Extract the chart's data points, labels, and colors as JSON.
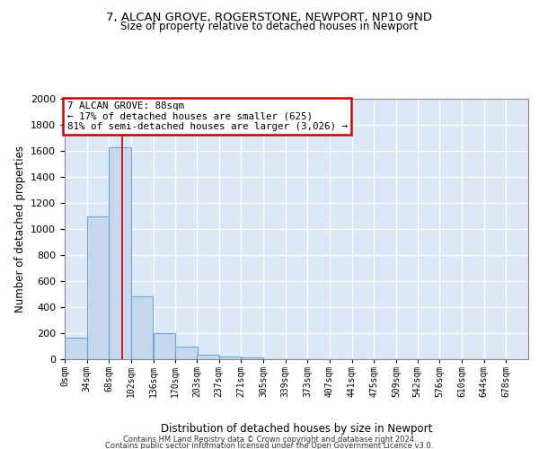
{
  "title_line1": "7, ALCAN GROVE, ROGERSTONE, NEWPORT, NP10 9ND",
  "title_line2": "Size of property relative to detached houses in Newport",
  "xlabel": "Distribution of detached houses by size in Newport",
  "ylabel": "Number of detached properties",
  "bar_color": "#c5d8ee",
  "bar_edge_color": "#6aaad4",
  "bg_color": "#dce8f5",
  "annotation_box_color": "#cc0000",
  "annotation_text": "7 ALCAN GROVE: 88sqm\n← 17% of detached houses are smaller (625)\n81% of semi-detached houses are larger (3,026) →",
  "property_size": 88,
  "categories": [
    "0sqm",
    "34sqm",
    "68sqm",
    "102sqm",
    "136sqm",
    "170sqm",
    "203sqm",
    "237sqm",
    "271sqm",
    "305sqm",
    "339sqm",
    "373sqm",
    "407sqm",
    "441sqm",
    "475sqm",
    "509sqm",
    "542sqm",
    "576sqm",
    "610sqm",
    "644sqm",
    "678sqm"
  ],
  "bin_edges": [
    0,
    34,
    68,
    102,
    136,
    170,
    203,
    237,
    271,
    305,
    339,
    373,
    407,
    441,
    475,
    509,
    542,
    576,
    610,
    644,
    678
  ],
  "bar_heights": [
    165,
    1095,
    1625,
    480,
    200,
    100,
    35,
    22,
    15,
    0,
    0,
    0,
    0,
    0,
    0,
    0,
    0,
    0,
    0,
    0
  ],
  "ylim": [
    0,
    2000
  ],
  "yticks": [
    0,
    200,
    400,
    600,
    800,
    1000,
    1200,
    1400,
    1600,
    1800,
    2000
  ],
  "footer_line1": "Contains HM Land Registry data © Crown copyright and database right 2024.",
  "footer_line2": "Contains public sector information licensed under the Open Government Licence v3.0."
}
